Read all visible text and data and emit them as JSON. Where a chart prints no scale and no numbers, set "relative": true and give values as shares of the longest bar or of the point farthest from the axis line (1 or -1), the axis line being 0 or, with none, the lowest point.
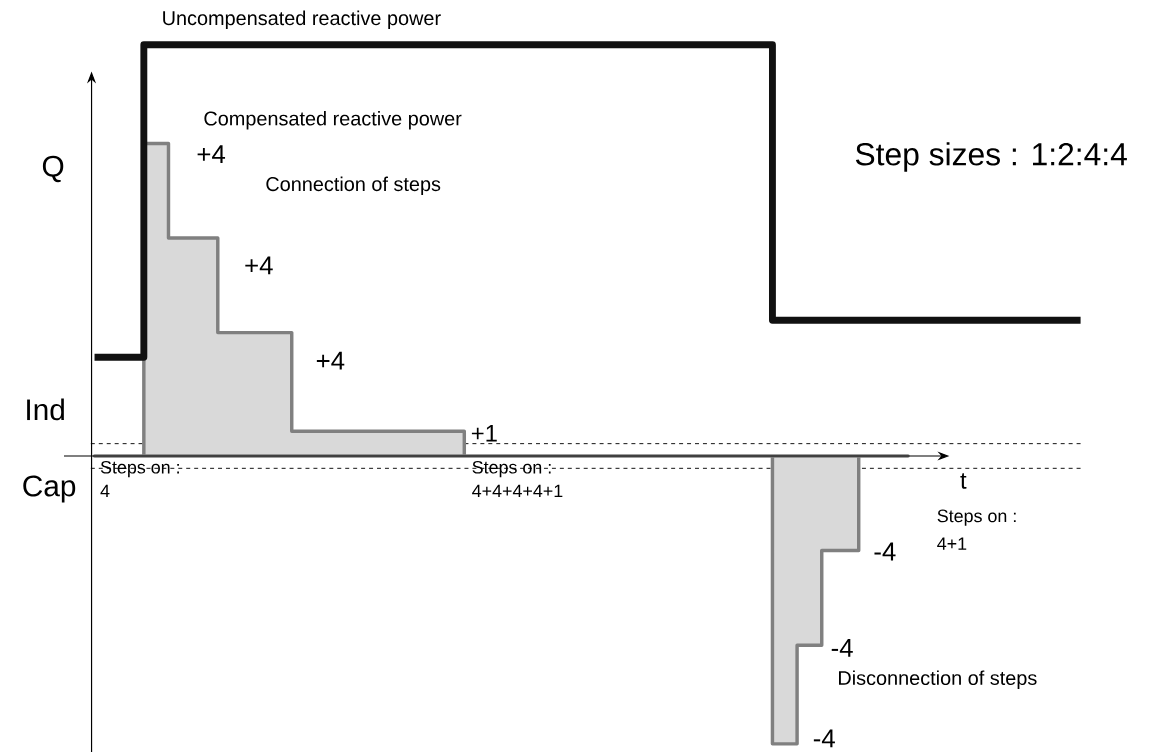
{
  "chart_data": {
    "type": "step",
    "relative": true,
    "xlabel": "t",
    "ylabel": "Q",
    "categories": [
      null,
      null,
      null,
      null,
      null,
      null,
      null,
      null,
      null,
      null,
      null,
      null,
      null,
      null,
      null,
      null,
      null,
      null,
      null,
      null,
      null,
      null,
      null,
      null,
      null,
      null,
      null,
      null,
      null,
      null,
      null,
      null,
      null,
      null,
      null,
      null,
      null,
      null,
      null,
      null,
      null,
      null,
      null,
      null,
      null,
      null,
      null,
      null,
      null,
      null,
      null,
      null,
      null,
      null,
      null,
      null,
      null,
      null,
      null,
      null,
      null,
      null,
      null,
      null,
      null,
      null,
      null,
      null,
      null,
      null,
      null,
      null,
      null,
      null,
      null,
      null,
      null,
      null,
      null,
      null,
      null
    ],
    "series": [
      {
        "name": "Uncompensated reactive power",
        "color": "#111111",
        "values": [
          0.24,
          0.24,
          0.24,
          0.24,
          1,
          1,
          1,
          1,
          1,
          1,
          1,
          1,
          1,
          1,
          1,
          1,
          1,
          1,
          1,
          1,
          1,
          1,
          1,
          1,
          1,
          1,
          1,
          1,
          1,
          1,
          1,
          1,
          1,
          1,
          1,
          1,
          1,
          1,
          1,
          1,
          1,
          1,
          1,
          1,
          1,
          1,
          1,
          1,
          1,
          1,
          1,
          1,
          1,
          1,
          1,
          0.33,
          0.33,
          0.33,
          0.33,
          0.33,
          0.33,
          0.33,
          0.33,
          0.33,
          0.33,
          0.33,
          0.33,
          0.33,
          0.33,
          0.33,
          0.33,
          0.33,
          0.33,
          0.33,
          0.33,
          0.33,
          0.33,
          0.33,
          0.33,
          0.33,
          0.33
        ]
      },
      {
        "name": "Compensated reactive power",
        "type": "area",
        "color": "#808080",
        "values": [
          0,
          0,
          0,
          0,
          0.76,
          0.76,
          0.53,
          0.53,
          0.53,
          0.53,
          0.3,
          0.3,
          0.3,
          0.3,
          0.3,
          0.3,
          0.06,
          0.06,
          0.06,
          0.06,
          0.06,
          0.06,
          0.06,
          0.06,
          0.06,
          0.06,
          0.06,
          0.06,
          0.06,
          0.06,
          0,
          0,
          0,
          0,
          0,
          0,
          0,
          0,
          0,
          0,
          0,
          0,
          0,
          0,
          0,
          0,
          0,
          0,
          0,
          0,
          0,
          0,
          0,
          0,
          0,
          -0.7,
          -0.7,
          -0.46,
          -0.46,
          -0.23,
          -0.23,
          -0.23,
          0,
          0,
          0,
          0,
          0,
          null,
          null,
          null,
          null,
          null,
          null,
          null,
          null,
          null,
          null,
          null,
          null,
          null,
          null
        ]
      }
    ],
    "ref_lines": [
      {
        "axis": "y",
        "value": 0.03,
        "line_style": "dashed"
      },
      {
        "axis": "y",
        "value": -0.03,
        "line_style": "dashed"
      }
    ],
    "annotations": [
      "Step sizes : 1:2:4:4",
      "Connection of steps",
      "+4",
      "+4",
      "+4",
      "+1",
      "Ind",
      "Cap",
      "Steps on :",
      "4",
      "Steps on :",
      "4+4+4+4+1",
      "Steps on :",
      "4+1",
      "-4",
      "-4",
      "Disconnection of steps",
      "-4"
    ]
  }
}
